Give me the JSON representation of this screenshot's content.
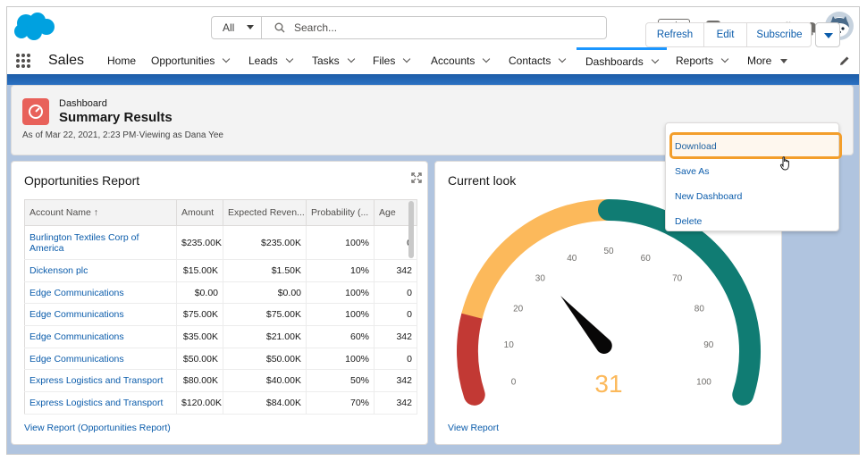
{
  "header": {
    "search_scope": "All",
    "search_placeholder": "Search...",
    "logo_icon": "salesforce-cloud-icon",
    "icons": [
      "favorites-star-icon",
      "global-add-icon",
      "trailhead-icon",
      "help-icon",
      "setup-gear-icon",
      "notifications-bell-icon",
      "avatar-icon"
    ]
  },
  "nav": {
    "app_name": "Sales",
    "items": [
      "Home",
      "Opportunities",
      "Leads",
      "Tasks",
      "Files",
      "Accounts",
      "Contacts",
      "Dashboards",
      "Reports",
      "More"
    ],
    "active": "Dashboards"
  },
  "dashboard": {
    "type_label": "Dashboard",
    "title": "Summary Results",
    "subtitle": "As of Mar 22, 2021, 2:23 PM·Viewing as Dana Yee",
    "buttons": {
      "refresh": "Refresh",
      "edit": "Edit",
      "subscribe": "Subscribe"
    },
    "menu": {
      "download": "Download",
      "save_as": "Save As",
      "new_dashboard": "New Dashboard",
      "delete": "Delete"
    }
  },
  "report": {
    "title": "Opportunities Report",
    "columns": [
      "Account Name ↑",
      "Amount",
      "Expected Reven...",
      "Probability (...",
      "Age"
    ],
    "rows": [
      {
        "account": "Burlington Textiles Corp of America",
        "amount": "$235.00K",
        "expected": "$235.00K",
        "probability": "100%",
        "age": "0"
      },
      {
        "account": "Dickenson plc",
        "amount": "$15.00K",
        "expected": "$1.50K",
        "probability": "10%",
        "age": "342"
      },
      {
        "account": "Edge Communications",
        "amount": "$0.00",
        "expected": "$0.00",
        "probability": "100%",
        "age": "0"
      },
      {
        "account": "Edge Communications",
        "amount": "$75.00K",
        "expected": "$75.00K",
        "probability": "100%",
        "age": "0"
      },
      {
        "account": "Edge Communications",
        "amount": "$35.00K",
        "expected": "$21.00K",
        "probability": "60%",
        "age": "342"
      },
      {
        "account": "Edge Communications",
        "amount": "$50.00K",
        "expected": "$50.00K",
        "probability": "100%",
        "age": "0"
      },
      {
        "account": "Express Logistics and Transport",
        "amount": "$80.00K",
        "expected": "$40.00K",
        "probability": "50%",
        "age": "342"
      },
      {
        "account": "Express Logistics and Transport",
        "amount": "$120.00K",
        "expected": "$84.00K",
        "probability": "70%",
        "age": "342"
      }
    ],
    "link": "View Report (Opportunities Report)"
  },
  "gauge": {
    "title": "Current look",
    "value_label": "31",
    "link": "View Report",
    "colors": {
      "low": "#c23934",
      "mid": "#fcb95b",
      "high": "#107c73",
      "needle": "#080707",
      "value": "#fcb95b"
    }
  },
  "chart_data": {
    "type": "gauge",
    "title": "Current look",
    "value": 31,
    "min": 0,
    "max": 100,
    "ticks": [
      0,
      10,
      20,
      30,
      40,
      50,
      60,
      70,
      80,
      90,
      100
    ],
    "bands": [
      {
        "from": 0,
        "to": 15,
        "color": "#c23934"
      },
      {
        "from": 15,
        "to": 50,
        "color": "#fcb95b"
      },
      {
        "from": 50,
        "to": 100,
        "color": "#107c73"
      }
    ]
  }
}
